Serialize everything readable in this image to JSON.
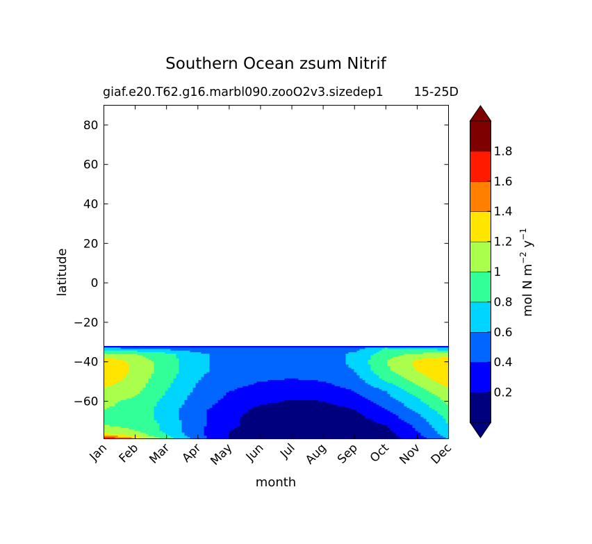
{
  "chart_data": {
    "type": "filled-contour",
    "title": "Southern Ocean zsum Nitrif",
    "subtitle_left": "giaf.e20.T62.g16.marbl090.zooO2v3.sizedep1",
    "subtitle_right": "15-25D",
    "xlabel": "month",
    "ylabel": "latitude",
    "x_categories": [
      "Jan",
      "Feb",
      "Mar",
      "Apr",
      "May",
      "Jun",
      "Jul",
      "Aug",
      "Sep",
      "Oct",
      "Nov",
      "Dec"
    ],
    "ylim": [
      -79,
      90
    ],
    "y_ticks": [
      80,
      60,
      40,
      20,
      0,
      -20,
      -40,
      -60
    ],
    "y_tick_labels": [
      "80",
      "60",
      "40",
      "20",
      "0",
      "−20",
      "−40",
      "−60"
    ],
    "data_lat_range": [
      -79,
      -32
    ],
    "colorbar": {
      "label_main": "mol N m",
      "label_exp1": "−2",
      "label_mid": " y",
      "label_exp2": "−1",
      "levels": [
        0,
        0.2,
        0.4,
        0.6,
        0.8,
        1.0,
        1.2,
        1.4,
        1.6,
        1.8,
        2.0
      ],
      "tick_values": [
        0.2,
        0.4,
        0.6,
        0.8,
        1.0,
        1.2,
        1.4,
        1.6,
        1.8
      ],
      "tick_labels": [
        "0.2",
        "0.4",
        "0.6",
        "0.8",
        "1",
        "1.2",
        "1.4",
        "1.6",
        "1.8"
      ],
      "colors": [
        "#00007f",
        "#0000ff",
        "#0066ff",
        "#00d5ff",
        "#33ff99",
        "#aaff4d",
        "#ffe500",
        "#ff7f00",
        "#ff1a00",
        "#7f0000"
      ],
      "extend": "both"
    },
    "grid": false,
    "latitudes": [
      -79,
      -77,
      -75,
      -72,
      -68,
      -64,
      -60,
      -55,
      -50,
      -45,
      -40,
      -36,
      -33,
      -32
    ],
    "values": [
      [
        1.85,
        1.4,
        0.9,
        0.5,
        0.2,
        0.1,
        0.1,
        0.1,
        0.1,
        0.1,
        0.3,
        0.6
      ],
      [
        1.3,
        1.15,
        0.8,
        0.45,
        0.2,
        0.1,
        0.1,
        0.1,
        0.1,
        0.12,
        0.35,
        0.7
      ],
      [
        1.1,
        1.0,
        0.75,
        0.45,
        0.2,
        0.1,
        0.1,
        0.1,
        0.1,
        0.15,
        0.4,
        0.75
      ],
      [
        1.0,
        0.95,
        0.75,
        0.45,
        0.25,
        0.1,
        0.1,
        0.1,
        0.1,
        0.2,
        0.45,
        0.8
      ],
      [
        0.95,
        0.95,
        0.7,
        0.45,
        0.25,
        0.12,
        0.1,
        0.1,
        0.15,
        0.3,
        0.55,
        0.85
      ],
      [
        1.0,
        0.95,
        0.7,
        0.45,
        0.3,
        0.15,
        0.12,
        0.12,
        0.2,
        0.4,
        0.65,
        0.95
      ],
      [
        1.05,
        0.95,
        0.75,
        0.5,
        0.35,
        0.25,
        0.18,
        0.2,
        0.3,
        0.5,
        0.75,
        1.05
      ],
      [
        1.15,
        1.05,
        0.8,
        0.55,
        0.4,
        0.35,
        0.3,
        0.3,
        0.4,
        0.6,
        0.9,
        1.15
      ],
      [
        1.3,
        1.1,
        0.85,
        0.6,
        0.45,
        0.4,
        0.38,
        0.4,
        0.5,
        0.8,
        1.05,
        1.3
      ],
      [
        1.4,
        1.15,
        0.9,
        0.65,
        0.5,
        0.45,
        0.45,
        0.45,
        0.6,
        0.95,
        1.2,
        1.4
      ],
      [
        1.35,
        1.15,
        0.9,
        0.65,
        0.5,
        0.45,
        0.45,
        0.48,
        0.65,
        1.0,
        1.25,
        1.35
      ],
      [
        1.05,
        1.0,
        0.85,
        0.65,
        0.5,
        0.45,
        0.45,
        0.48,
        0.65,
        0.9,
        1.05,
        1.1
      ],
      [
        0.6,
        0.55,
        0.5,
        0.45,
        0.45,
        0.45,
        0.45,
        0.45,
        0.5,
        0.8,
        0.7,
        0.65
      ],
      [
        0.1,
        0.1,
        0.1,
        0.1,
        0.1,
        0.1,
        0.1,
        0.1,
        0.1,
        0.1,
        0.1,
        0.1
      ]
    ]
  }
}
